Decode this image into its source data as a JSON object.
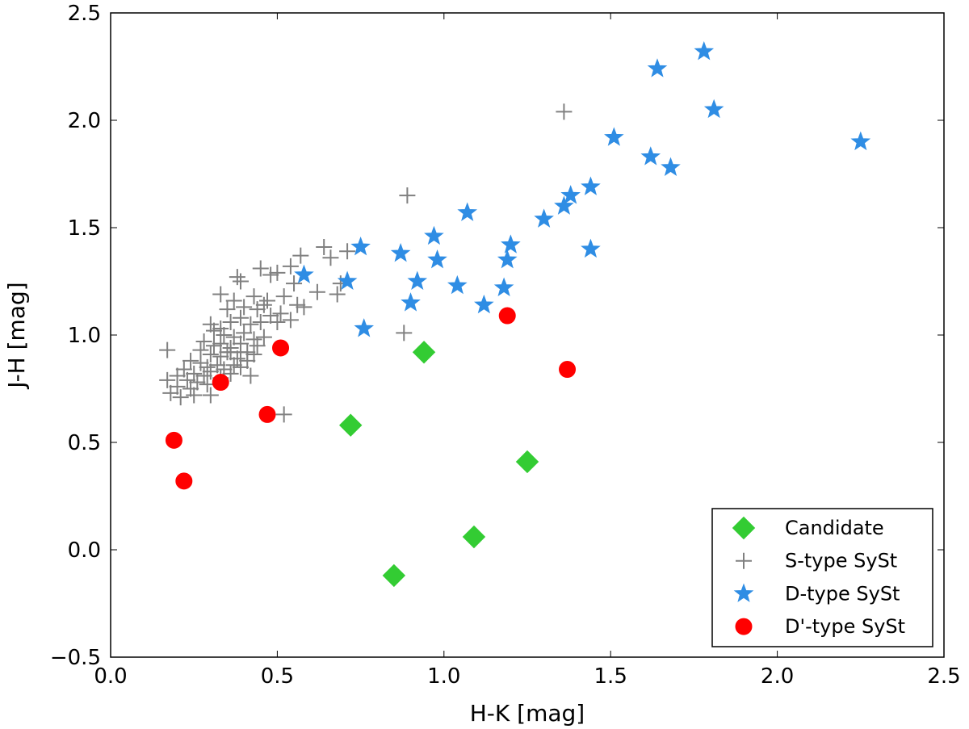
{
  "chart_data": {
    "type": "scatter",
    "title": "",
    "xlabel": "H-K [mag]",
    "ylabel": "J-H [mag]",
    "xlim": [
      0.0,
      2.5
    ],
    "ylim": [
      -0.5,
      2.5
    ],
    "xticks": [
      0.0,
      0.5,
      1.0,
      1.5,
      2.0,
      2.5
    ],
    "yticks": [
      -0.5,
      0.0,
      0.5,
      1.0,
      1.5,
      2.0,
      2.5
    ],
    "xtick_labels": [
      "0.0",
      "0.5",
      "1.0",
      "1.5",
      "2.0",
      "2.5"
    ],
    "ytick_labels": [
      "−0.5",
      "0.0",
      "0.5",
      "1.0",
      "1.5",
      "2.0",
      "2.5"
    ],
    "grid": false,
    "legend_position": "bottom-right",
    "series": [
      {
        "name": "Candidate",
        "marker": "diamond",
        "color": "#33cc33",
        "points": [
          [
            0.94,
            0.92
          ],
          [
            0.72,
            0.58
          ],
          [
            1.25,
            0.41
          ],
          [
            1.09,
            0.06
          ],
          [
            0.85,
            -0.12
          ]
        ]
      },
      {
        "name": "S-type SySt",
        "marker": "plus",
        "color": "#808080",
        "points": [
          [
            1.36,
            2.04
          ],
          [
            0.89,
            1.65
          ],
          [
            0.88,
            1.01
          ],
          [
            0.52,
            0.63
          ],
          [
            0.64,
            1.41
          ],
          [
            0.66,
            1.36
          ],
          [
            0.71,
            1.39
          ],
          [
            0.57,
            1.37
          ],
          [
            0.54,
            1.32
          ],
          [
            0.45,
            1.31
          ],
          [
            0.38,
            1.27
          ],
          [
            0.39,
            1.25
          ],
          [
            0.48,
            1.28
          ],
          [
            0.5,
            1.29
          ],
          [
            0.55,
            1.24
          ],
          [
            0.62,
            1.2
          ],
          [
            0.68,
            1.19
          ],
          [
            0.69,
            1.24
          ],
          [
            0.33,
            1.19
          ],
          [
            0.37,
            1.16
          ],
          [
            0.43,
            1.18
          ],
          [
            0.47,
            1.16
          ],
          [
            0.52,
            1.18
          ],
          [
            0.56,
            1.14
          ],
          [
            0.58,
            1.13
          ],
          [
            0.35,
            1.12
          ],
          [
            0.4,
            1.13
          ],
          [
            0.44,
            1.12
          ],
          [
            0.46,
            1.14
          ],
          [
            0.51,
            1.1
          ],
          [
            0.54,
            1.07
          ],
          [
            0.3,
            1.05
          ],
          [
            0.33,
            1.03
          ],
          [
            0.36,
            1.06
          ],
          [
            0.39,
            1.08
          ],
          [
            0.42,
            1.05
          ],
          [
            0.45,
            1.06
          ],
          [
            0.48,
            1.09
          ],
          [
            0.5,
            1.06
          ],
          [
            0.31,
            1.02
          ],
          [
            0.34,
            1.0
          ],
          [
            0.37,
            0.99
          ],
          [
            0.4,
            1.01
          ],
          [
            0.43,
            0.98
          ],
          [
            0.46,
            0.99
          ],
          [
            0.28,
            0.97
          ],
          [
            0.31,
            0.95
          ],
          [
            0.33,
            0.96
          ],
          [
            0.36,
            0.94
          ],
          [
            0.39,
            0.96
          ],
          [
            0.41,
            0.92
          ],
          [
            0.44,
            0.95
          ],
          [
            0.27,
            0.93
          ],
          [
            0.3,
            0.91
          ],
          [
            0.33,
            0.9
          ],
          [
            0.35,
            0.92
          ],
          [
            0.38,
            0.89
          ],
          [
            0.41,
            0.88
          ],
          [
            0.43,
            0.91
          ],
          [
            0.24,
            0.88
          ],
          [
            0.27,
            0.87
          ],
          [
            0.29,
            0.85
          ],
          [
            0.32,
            0.86
          ],
          [
            0.34,
            0.84
          ],
          [
            0.37,
            0.86
          ],
          [
            0.39,
            0.85
          ],
          [
            0.22,
            0.84
          ],
          [
            0.25,
            0.82
          ],
          [
            0.28,
            0.81
          ],
          [
            0.3,
            0.83
          ],
          [
            0.33,
            0.8
          ],
          [
            0.36,
            0.82
          ],
          [
            0.2,
            0.81
          ],
          [
            0.23,
            0.79
          ],
          [
            0.26,
            0.78
          ],
          [
            0.29,
            0.77
          ],
          [
            0.17,
            0.79
          ],
          [
            0.2,
            0.76
          ],
          [
            0.24,
            0.75
          ],
          [
            0.18,
            0.73
          ],
          [
            0.21,
            0.71
          ],
          [
            0.25,
            0.72
          ],
          [
            0.3,
            0.72
          ],
          [
            0.42,
            0.81
          ],
          [
            0.17,
            0.93
          ],
          [
            0.36,
            0.92
          ],
          [
            0.39,
            0.92
          ]
        ]
      },
      {
        "name": "D-type SySt",
        "marker": "star",
        "color": "#2f8de4",
        "points": [
          [
            1.78,
            2.32
          ],
          [
            1.64,
            2.24
          ],
          [
            1.81,
            2.05
          ],
          [
            2.25,
            1.9
          ],
          [
            1.51,
            1.92
          ],
          [
            1.62,
            1.83
          ],
          [
            1.68,
            1.78
          ],
          [
            1.44,
            1.69
          ],
          [
            1.38,
            1.65
          ],
          [
            1.36,
            1.6
          ],
          [
            1.3,
            1.54
          ],
          [
            1.07,
            1.57
          ],
          [
            0.97,
            1.46
          ],
          [
            1.44,
            1.4
          ],
          [
            1.2,
            1.42
          ],
          [
            0.75,
            1.41
          ],
          [
            0.87,
            1.38
          ],
          [
            0.98,
            1.35
          ],
          [
            1.19,
            1.35
          ],
          [
            0.58,
            1.28
          ],
          [
            0.71,
            1.25
          ],
          [
            0.92,
            1.25
          ],
          [
            1.04,
            1.23
          ],
          [
            1.18,
            1.22
          ],
          [
            0.9,
            1.15
          ],
          [
            1.12,
            1.14
          ],
          [
            0.76,
            1.03
          ]
        ]
      },
      {
        "name": "D'-type SySt",
        "marker": "circle",
        "color": "#ff0000",
        "points": [
          [
            1.19,
            1.09
          ],
          [
            0.51,
            0.94
          ],
          [
            1.37,
            0.84
          ],
          [
            0.33,
            0.78
          ],
          [
            0.47,
            0.63
          ],
          [
            0.19,
            0.51
          ],
          [
            0.22,
            0.32
          ]
        ]
      }
    ]
  }
}
